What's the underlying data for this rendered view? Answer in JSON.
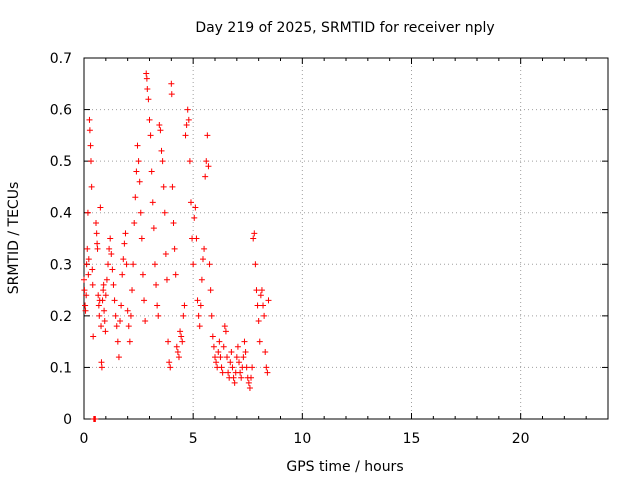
{
  "chart_data": {
    "type": "scatter",
    "title": "Day 219 of 2025, SRMTID for receiver nply",
    "xlabel": "GPS time / hours",
    "ylabel": "SRMTID / TECUs",
    "xlim": [
      0,
      24
    ],
    "ylim": [
      0,
      0.7
    ],
    "xticks": [
      0,
      5,
      10,
      15,
      20
    ],
    "yticks": [
      0,
      0.1,
      0.2,
      0.3,
      0.4,
      0.5,
      0.6,
      0.7
    ],
    "xtick_labels": [
      "0",
      "5",
      "10",
      "15",
      "20"
    ],
    "ytick_labels": [
      "0",
      "0.1",
      "0.2",
      "0.3",
      "0.4",
      "0.5",
      "0.6",
      "0.7"
    ],
    "grid": true,
    "marker": "+",
    "color": "#ff0000",
    "series": [
      {
        "name": "SRMTID",
        "points": [
          [
            0.0,
            0.27
          ],
          [
            0.02,
            0.25
          ],
          [
            0.05,
            0.22
          ],
          [
            0.07,
            0.21
          ],
          [
            0.1,
            0.24
          ],
          [
            0.12,
            0.3
          ],
          [
            0.15,
            0.33
          ],
          [
            0.18,
            0.4
          ],
          [
            0.2,
            0.28
          ],
          [
            0.22,
            0.31
          ],
          [
            0.25,
            0.58
          ],
          [
            0.27,
            0.56
          ],
          [
            0.3,
            0.53
          ],
          [
            0.32,
            0.5
          ],
          [
            0.35,
            0.45
          ],
          [
            0.38,
            0.29
          ],
          [
            0.4,
            0.26
          ],
          [
            0.42,
            0.16
          ],
          [
            0.45,
            0.0
          ],
          [
            0.47,
            0.0
          ],
          [
            0.5,
            0.0
          ],
          [
            0.52,
            0.0
          ],
          [
            0.55,
            0.38
          ],
          [
            0.58,
            0.36
          ],
          [
            0.6,
            0.34
          ],
          [
            0.62,
            0.33
          ],
          [
            0.65,
            0.24
          ],
          [
            0.68,
            0.22
          ],
          [
            0.7,
            0.2
          ],
          [
            0.72,
            0.23
          ],
          [
            0.75,
            0.41
          ],
          [
            0.78,
            0.18
          ],
          [
            0.8,
            0.11
          ],
          [
            0.82,
            0.1
          ],
          [
            0.85,
            0.23
          ],
          [
            0.88,
            0.25
          ],
          [
            0.9,
            0.26
          ],
          [
            0.92,
            0.21
          ],
          [
            0.95,
            0.19
          ],
          [
            0.98,
            0.17
          ],
          [
            1.0,
            0.24
          ],
          [
            1.05,
            0.27
          ],
          [
            1.1,
            0.3
          ],
          [
            1.15,
            0.33
          ],
          [
            1.2,
            0.35
          ],
          [
            1.25,
            0.32
          ],
          [
            1.3,
            0.29
          ],
          [
            1.35,
            0.26
          ],
          [
            1.4,
            0.23
          ],
          [
            1.45,
            0.2
          ],
          [
            1.5,
            0.18
          ],
          [
            1.55,
            0.15
          ],
          [
            1.6,
            0.12
          ],
          [
            1.65,
            0.19
          ],
          [
            1.7,
            0.22
          ],
          [
            1.75,
            0.28
          ],
          [
            1.8,
            0.31
          ],
          [
            1.85,
            0.34
          ],
          [
            1.9,
            0.36
          ],
          [
            1.95,
            0.3
          ],
          [
            2.0,
            0.21
          ],
          [
            2.05,
            0.18
          ],
          [
            2.1,
            0.15
          ],
          [
            2.15,
            0.2
          ],
          [
            2.2,
            0.25
          ],
          [
            2.25,
            0.3
          ],
          [
            2.3,
            0.38
          ],
          [
            2.35,
            0.43
          ],
          [
            2.4,
            0.48
          ],
          [
            2.45,
            0.53
          ],
          [
            2.5,
            0.5
          ],
          [
            2.55,
            0.46
          ],
          [
            2.6,
            0.4
          ],
          [
            2.65,
            0.35
          ],
          [
            2.7,
            0.28
          ],
          [
            2.75,
            0.23
          ],
          [
            2.8,
            0.19
          ],
          [
            2.85,
            0.67
          ],
          [
            2.88,
            0.66
          ],
          [
            2.9,
            0.64
          ],
          [
            2.95,
            0.62
          ],
          [
            3.0,
            0.58
          ],
          [
            3.05,
            0.55
          ],
          [
            3.1,
            0.48
          ],
          [
            3.15,
            0.42
          ],
          [
            3.2,
            0.37
          ],
          [
            3.25,
            0.3
          ],
          [
            3.3,
            0.26
          ],
          [
            3.35,
            0.22
          ],
          [
            3.4,
            0.2
          ],
          [
            3.45,
            0.57
          ],
          [
            3.5,
            0.56
          ],
          [
            3.55,
            0.52
          ],
          [
            3.6,
            0.5
          ],
          [
            3.65,
            0.45
          ],
          [
            3.7,
            0.4
          ],
          [
            3.75,
            0.32
          ],
          [
            3.8,
            0.27
          ],
          [
            3.85,
            0.15
          ],
          [
            3.9,
            0.11
          ],
          [
            3.95,
            0.1
          ],
          [
            4.0,
            0.65
          ],
          [
            4.02,
            0.63
          ],
          [
            4.05,
            0.45
          ],
          [
            4.1,
            0.38
          ],
          [
            4.15,
            0.33
          ],
          [
            4.2,
            0.28
          ],
          [
            4.25,
            0.14
          ],
          [
            4.3,
            0.13
          ],
          [
            4.35,
            0.12
          ],
          [
            4.4,
            0.17
          ],
          [
            4.45,
            0.16
          ],
          [
            4.5,
            0.15
          ],
          [
            4.55,
            0.2
          ],
          [
            4.6,
            0.22
          ],
          [
            4.65,
            0.55
          ],
          [
            4.7,
            0.57
          ],
          [
            4.75,
            0.6
          ],
          [
            4.8,
            0.58
          ],
          [
            4.85,
            0.5
          ],
          [
            4.9,
            0.42
          ],
          [
            4.95,
            0.35
          ],
          [
            5.0,
            0.3
          ],
          [
            5.05,
            0.39
          ],
          [
            5.1,
            0.41
          ],
          [
            5.15,
            0.35
          ],
          [
            5.2,
            0.23
          ],
          [
            5.25,
            0.2
          ],
          [
            5.3,
            0.18
          ],
          [
            5.35,
            0.22
          ],
          [
            5.4,
            0.27
          ],
          [
            5.45,
            0.31
          ],
          [
            5.5,
            0.33
          ],
          [
            5.55,
            0.47
          ],
          [
            5.6,
            0.5
          ],
          [
            5.65,
            0.55
          ],
          [
            5.7,
            0.49
          ],
          [
            5.75,
            0.3
          ],
          [
            5.8,
            0.25
          ],
          [
            5.85,
            0.2
          ],
          [
            5.9,
            0.16
          ],
          [
            5.95,
            0.14
          ],
          [
            6.0,
            0.12
          ],
          [
            6.05,
            0.11
          ],
          [
            6.1,
            0.1
          ],
          [
            6.15,
            0.13
          ],
          [
            6.2,
            0.15
          ],
          [
            6.25,
            0.12
          ],
          [
            6.3,
            0.1
          ],
          [
            6.35,
            0.09
          ],
          [
            6.4,
            0.14
          ],
          [
            6.45,
            0.18
          ],
          [
            6.5,
            0.17
          ],
          [
            6.55,
            0.12
          ],
          [
            6.6,
            0.09
          ],
          [
            6.65,
            0.08
          ],
          [
            6.7,
            0.11
          ],
          [
            6.75,
            0.13
          ],
          [
            6.8,
            0.1
          ],
          [
            6.85,
            0.08
          ],
          [
            6.9,
            0.07
          ],
          [
            6.95,
            0.09
          ],
          [
            7.0,
            0.12
          ],
          [
            7.05,
            0.14
          ],
          [
            7.1,
            0.11
          ],
          [
            7.15,
            0.09
          ],
          [
            7.2,
            0.08
          ],
          [
            7.25,
            0.1
          ],
          [
            7.3,
            0.12
          ],
          [
            7.35,
            0.15
          ],
          [
            7.4,
            0.13
          ],
          [
            7.45,
            0.1
          ],
          [
            7.5,
            0.08
          ],
          [
            7.55,
            0.07
          ],
          [
            7.6,
            0.06
          ],
          [
            7.65,
            0.08
          ],
          [
            7.7,
            0.1
          ],
          [
            7.75,
            0.35
          ],
          [
            7.8,
            0.36
          ],
          [
            7.85,
            0.3
          ],
          [
            7.9,
            0.25
          ],
          [
            7.95,
            0.22
          ],
          [
            8.0,
            0.19
          ],
          [
            8.05,
            0.15
          ],
          [
            8.1,
            0.24
          ],
          [
            8.15,
            0.25
          ],
          [
            8.2,
            0.22
          ],
          [
            8.25,
            0.2
          ],
          [
            8.3,
            0.13
          ],
          [
            8.35,
            0.1
          ],
          [
            8.4,
            0.09
          ],
          [
            8.45,
            0.23
          ]
        ]
      }
    ]
  }
}
